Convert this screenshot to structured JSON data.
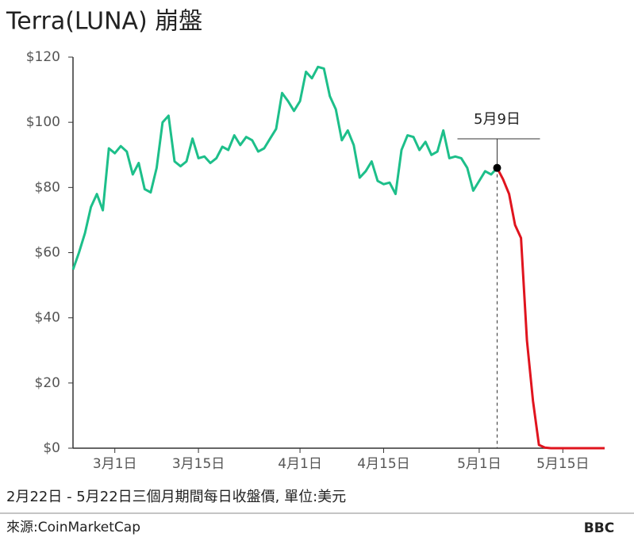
{
  "chart_data": {
    "type": "line",
    "title": "Terra(LUNA) 崩盤",
    "caption": "2月22日 - 5月22日三個月期間每日收盤價, 單位:美元",
    "source": "來源:CoinMarketCap",
    "logo": "BBC",
    "annotation": {
      "text": "5月9日"
    },
    "categories": [
      null,
      null,
      null,
      null,
      null,
      null,
      null,
      "3月1日",
      null,
      null,
      null,
      null,
      null,
      null,
      null,
      null,
      null,
      null,
      null,
      null,
      null,
      "3月15日",
      null,
      null,
      null,
      null,
      null,
      null,
      null,
      null,
      null,
      null,
      null,
      null,
      null,
      null,
      null,
      null,
      "4月1日",
      null,
      null,
      null,
      null,
      null,
      null,
      null,
      null,
      null,
      null,
      null,
      null,
      null,
      "4月15日",
      null,
      null,
      null,
      null,
      null,
      null,
      null,
      null,
      null,
      null,
      null,
      null,
      null,
      null,
      null,
      "5月1日",
      null,
      null,
      null,
      null,
      null,
      null,
      null,
      null,
      null,
      null,
      null,
      null,
      null,
      "5月15日",
      null,
      null,
      null,
      null,
      null,
      null,
      null
    ],
    "series": [
      {
        "color": "#1dbf8a",
        "values": [
          54.8,
          60,
          66,
          74,
          78,
          73,
          92,
          90.5,
          92.7,
          91,
          84,
          87.5,
          79.5,
          78.5,
          86,
          100,
          102,
          88,
          86.5,
          88,
          95,
          89,
          89.5,
          87.5,
          89,
          92.5,
          91.5,
          96,
          93,
          95.5,
          94.5,
          91,
          92,
          95,
          98,
          109,
          106.5,
          103.5,
          106.5,
          115.5,
          113.5,
          117,
          116.5,
          108,
          104,
          94.5,
          97.5,
          93,
          83,
          85,
          88,
          82,
          81,
          81.5,
          78,
          91.5,
          96,
          95.5,
          91.5,
          94,
          90,
          91,
          97.5,
          89,
          89.5,
          89,
          86,
          79,
          82,
          85,
          84,
          86,
          null,
          null,
          null,
          null,
          null,
          null,
          null,
          null,
          null,
          null,
          null,
          null,
          null,
          null,
          null,
          null,
          null,
          null
        ]
      },
      {
        "color": "#e0141e",
        "values": [
          null,
          null,
          null,
          null,
          null,
          null,
          null,
          null,
          null,
          null,
          null,
          null,
          null,
          null,
          null,
          null,
          null,
          null,
          null,
          null,
          null,
          null,
          null,
          null,
          null,
          null,
          null,
          null,
          null,
          null,
          null,
          null,
          null,
          null,
          null,
          null,
          null,
          null,
          null,
          null,
          null,
          null,
          null,
          null,
          null,
          null,
          null,
          null,
          null,
          null,
          null,
          null,
          null,
          null,
          null,
          null,
          null,
          null,
          null,
          null,
          null,
          null,
          null,
          null,
          null,
          null,
          null,
          null,
          null,
          null,
          null,
          86,
          82.5,
          78,
          68.5,
          64.5,
          33,
          14.5,
          1,
          0.2,
          0,
          0,
          0,
          0,
          0,
          0,
          0,
          0,
          0,
          0
        ]
      }
    ],
    "ylim": [
      0,
      120
    ],
    "yticks": [
      {
        "value": 0,
        "label": "$0"
      },
      {
        "value": 20,
        "label": "$20"
      },
      {
        "value": 40,
        "label": "$40"
      },
      {
        "value": 60,
        "label": "$60"
      },
      {
        "value": 80,
        "label": "$80"
      },
      {
        "value": 100,
        "label": "$100"
      },
      {
        "value": 120,
        "label": "$120"
      }
    ]
  }
}
